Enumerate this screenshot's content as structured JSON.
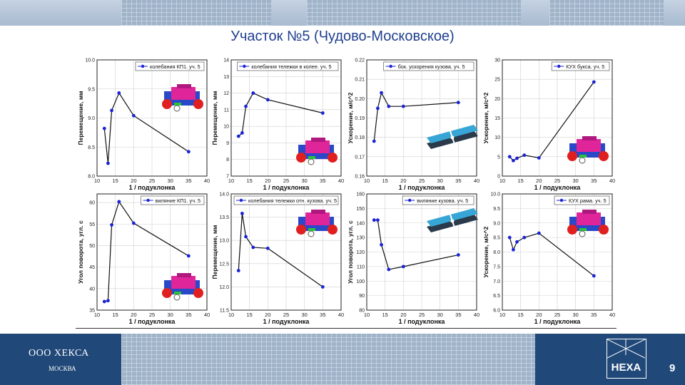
{
  "slide": {
    "title": "Участок №5 (Чудово-Московское)",
    "company": "ООО ХЕКСА",
    "city": "МОСКВА",
    "logo_text": "HEXA",
    "page_number": "9"
  },
  "colors": {
    "series": "#1a22d6",
    "line": "#111111",
    "title": "#1f3f8f",
    "footer": "#204878"
  },
  "chart_data": [
    {
      "type": "line",
      "legend": "колебания КП1. уч. 5",
      "xlabel": "1 / подуклонка",
      "ylabel": "Перемещение, мм",
      "xlim": [
        10,
        40
      ],
      "ylim": [
        8.0,
        10.0
      ],
      "xticks": [
        10,
        15,
        20,
        25,
        30,
        35,
        40
      ],
      "yticks": [
        8.0,
        8.5,
        9.0,
        9.5,
        10.0
      ],
      "ydec": 1,
      "x": [
        12,
        13,
        14,
        16,
        20,
        35
      ],
      "y": [
        8.82,
        8.22,
        9.13,
        9.43,
        9.04,
        8.42
      ],
      "icon": "bogie",
      "legend_pos": "top-right"
    },
    {
      "type": "line",
      "legend": "колебания тележки в колее. уч. 5",
      "xlabel": "1 / подуклонка",
      "ylabel": "Перемещение, мм",
      "xlim": [
        10,
        40
      ],
      "ylim": [
        7,
        14
      ],
      "xticks": [
        10,
        15,
        20,
        25,
        30,
        35,
        40
      ],
      "yticks": [
        7,
        8,
        9,
        10,
        11,
        12,
        13,
        14
      ],
      "ydec": 0,
      "x": [
        12,
        13,
        14,
        16,
        20,
        35
      ],
      "y": [
        9.4,
        9.6,
        11.2,
        12.0,
        11.6,
        10.8
      ],
      "icon": "bogie",
      "legend_pos": "top-right"
    },
    {
      "type": "line",
      "legend": "бок. ускорения кузова. уч. 5",
      "xlabel": "1 / подуклонка",
      "ylabel": "Ускорение, м/с^2",
      "xlim": [
        10,
        40
      ],
      "ylim": [
        0.16,
        0.22
      ],
      "xticks": [
        10,
        15,
        20,
        25,
        30,
        35,
        40
      ],
      "yticks": [
        0.16,
        0.17,
        0.18,
        0.19,
        0.2,
        0.21,
        0.22
      ],
      "ydec": 2,
      "x": [
        12,
        13,
        14,
        16,
        20,
        35
      ],
      "y": [
        0.178,
        0.195,
        0.203,
        0.196,
        0.196,
        0.198
      ],
      "icon": "car",
      "legend_pos": "top-right"
    },
    {
      "type": "line",
      "legend": "КУХ букса. уч. 5",
      "xlabel": "1 / подуклонка",
      "ylabel": "Ускорение, м/с^2",
      "xlim": [
        10,
        40
      ],
      "ylim": [
        0,
        30
      ],
      "xticks": [
        10,
        15,
        20,
        25,
        30,
        35,
        40
      ],
      "yticks": [
        0,
        5,
        10,
        15,
        20,
        25,
        30
      ],
      "ydec": 0,
      "x": [
        12,
        13,
        14,
        16,
        20,
        35
      ],
      "y": [
        5.0,
        4.0,
        4.6,
        5.4,
        4.7,
        24.3
      ],
      "icon": "bogie",
      "legend_pos": "top-right"
    },
    {
      "type": "line",
      "legend": "виляние КП1. уч. 5",
      "xlabel": "1 / подуклонка",
      "ylabel": "Угол поворота, угл. с",
      "xlim": [
        10,
        40
      ],
      "ylim": [
        35,
        62
      ],
      "xticks": [
        10,
        15,
        20,
        25,
        30,
        35,
        40
      ],
      "yticks": [
        35,
        40,
        45,
        50,
        55,
        60
      ],
      "ydec": 0,
      "x": [
        12,
        13,
        14,
        16,
        20,
        35
      ],
      "y": [
        37.0,
        37.2,
        54.8,
        60.2,
        55.2,
        47.6
      ],
      "icon": "bogie",
      "legend_pos": "top-right"
    },
    {
      "type": "line",
      "legend": "колебания тележки отн. кузова. уч. 5",
      "xlabel": "1 / подуклонка",
      "ylabel": "Перемещение, мм",
      "xlim": [
        10,
        40
      ],
      "ylim": [
        11.5,
        14.0
      ],
      "xticks": [
        10,
        15,
        20,
        25,
        30,
        35,
        40
      ],
      "yticks": [
        11.5,
        12.0,
        12.5,
        13.0,
        13.5,
        14.0
      ],
      "ydec": 1,
      "x": [
        12,
        13,
        14,
        16,
        20,
        35
      ],
      "y": [
        12.35,
        13.58,
        13.08,
        12.85,
        12.83,
        12.0
      ],
      "icon": "bogie",
      "legend_pos": "top-right"
    },
    {
      "type": "line",
      "legend": "виляние кузова. уч. 5",
      "xlabel": "1 / подуклонка",
      "ylabel": "Угол поворота, угл. с",
      "xlim": [
        10,
        40
      ],
      "ylim": [
        80,
        160
      ],
      "xticks": [
        10,
        15,
        20,
        25,
        30,
        35,
        40
      ],
      "yticks": [
        80,
        90,
        100,
        110,
        120,
        130,
        140,
        150,
        160
      ],
      "ydec": 0,
      "x": [
        12,
        13,
        14,
        16,
        20,
        35
      ],
      "y": [
        142,
        142,
        125,
        108,
        110,
        118
      ],
      "icon": "car",
      "legend_pos": "top-right"
    },
    {
      "type": "line",
      "legend": "КУХ рама. уч. 5",
      "xlabel": "1 / подуклонка",
      "ylabel": "Ускорение, м/с^2",
      "xlim": [
        10,
        40
      ],
      "ylim": [
        6.0,
        10.0
      ],
      "xticks": [
        10,
        15,
        20,
        25,
        30,
        35,
        40
      ],
      "yticks": [
        6.0,
        6.5,
        7.0,
        7.5,
        8.0,
        8.5,
        9.0,
        9.5,
        10.0
      ],
      "ydec": 1,
      "x": [
        12,
        13,
        14,
        16,
        20,
        35
      ],
      "y": [
        8.5,
        8.08,
        8.35,
        8.5,
        8.65,
        7.18
      ],
      "icon": "bogie",
      "legend_pos": "top-right"
    }
  ]
}
